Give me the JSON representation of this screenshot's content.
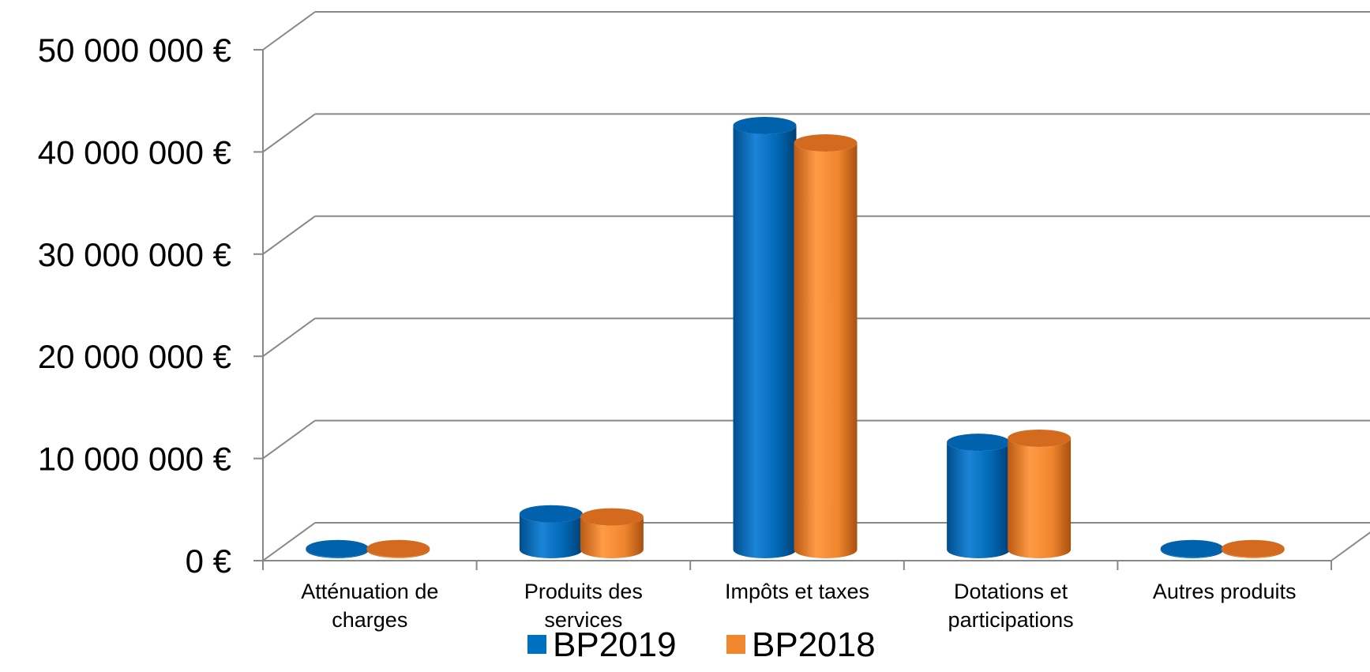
{
  "chart_data": {
    "type": "bar",
    "style": "3d-cylinder",
    "categories": [
      [
        "Atténuation de",
        "charges"
      ],
      [
        "Produits des",
        "services"
      ],
      [
        "Impôts et taxes"
      ],
      [
        "Dotations et",
        "participations"
      ],
      [
        "Autres produits"
      ]
    ],
    "series": [
      {
        "name": "BP2019",
        "color": "#0070C0",
        "values": [
          100000,
          3500000,
          41500000,
          10500000,
          100000
        ]
      },
      {
        "name": "BP2018",
        "color": "#F0862E",
        "values": [
          100000,
          3200000,
          39800000,
          10900000,
          100000
        ]
      }
    ],
    "ylim": [
      0,
      50000000
    ],
    "y_ticks": [
      "0 €",
      "10 000 000 €",
      "20 000 000 €",
      "30 000 000 €",
      "40 000 000 €",
      "50 000 000 €"
    ],
    "grid": true,
    "legend_position": "bottom"
  }
}
